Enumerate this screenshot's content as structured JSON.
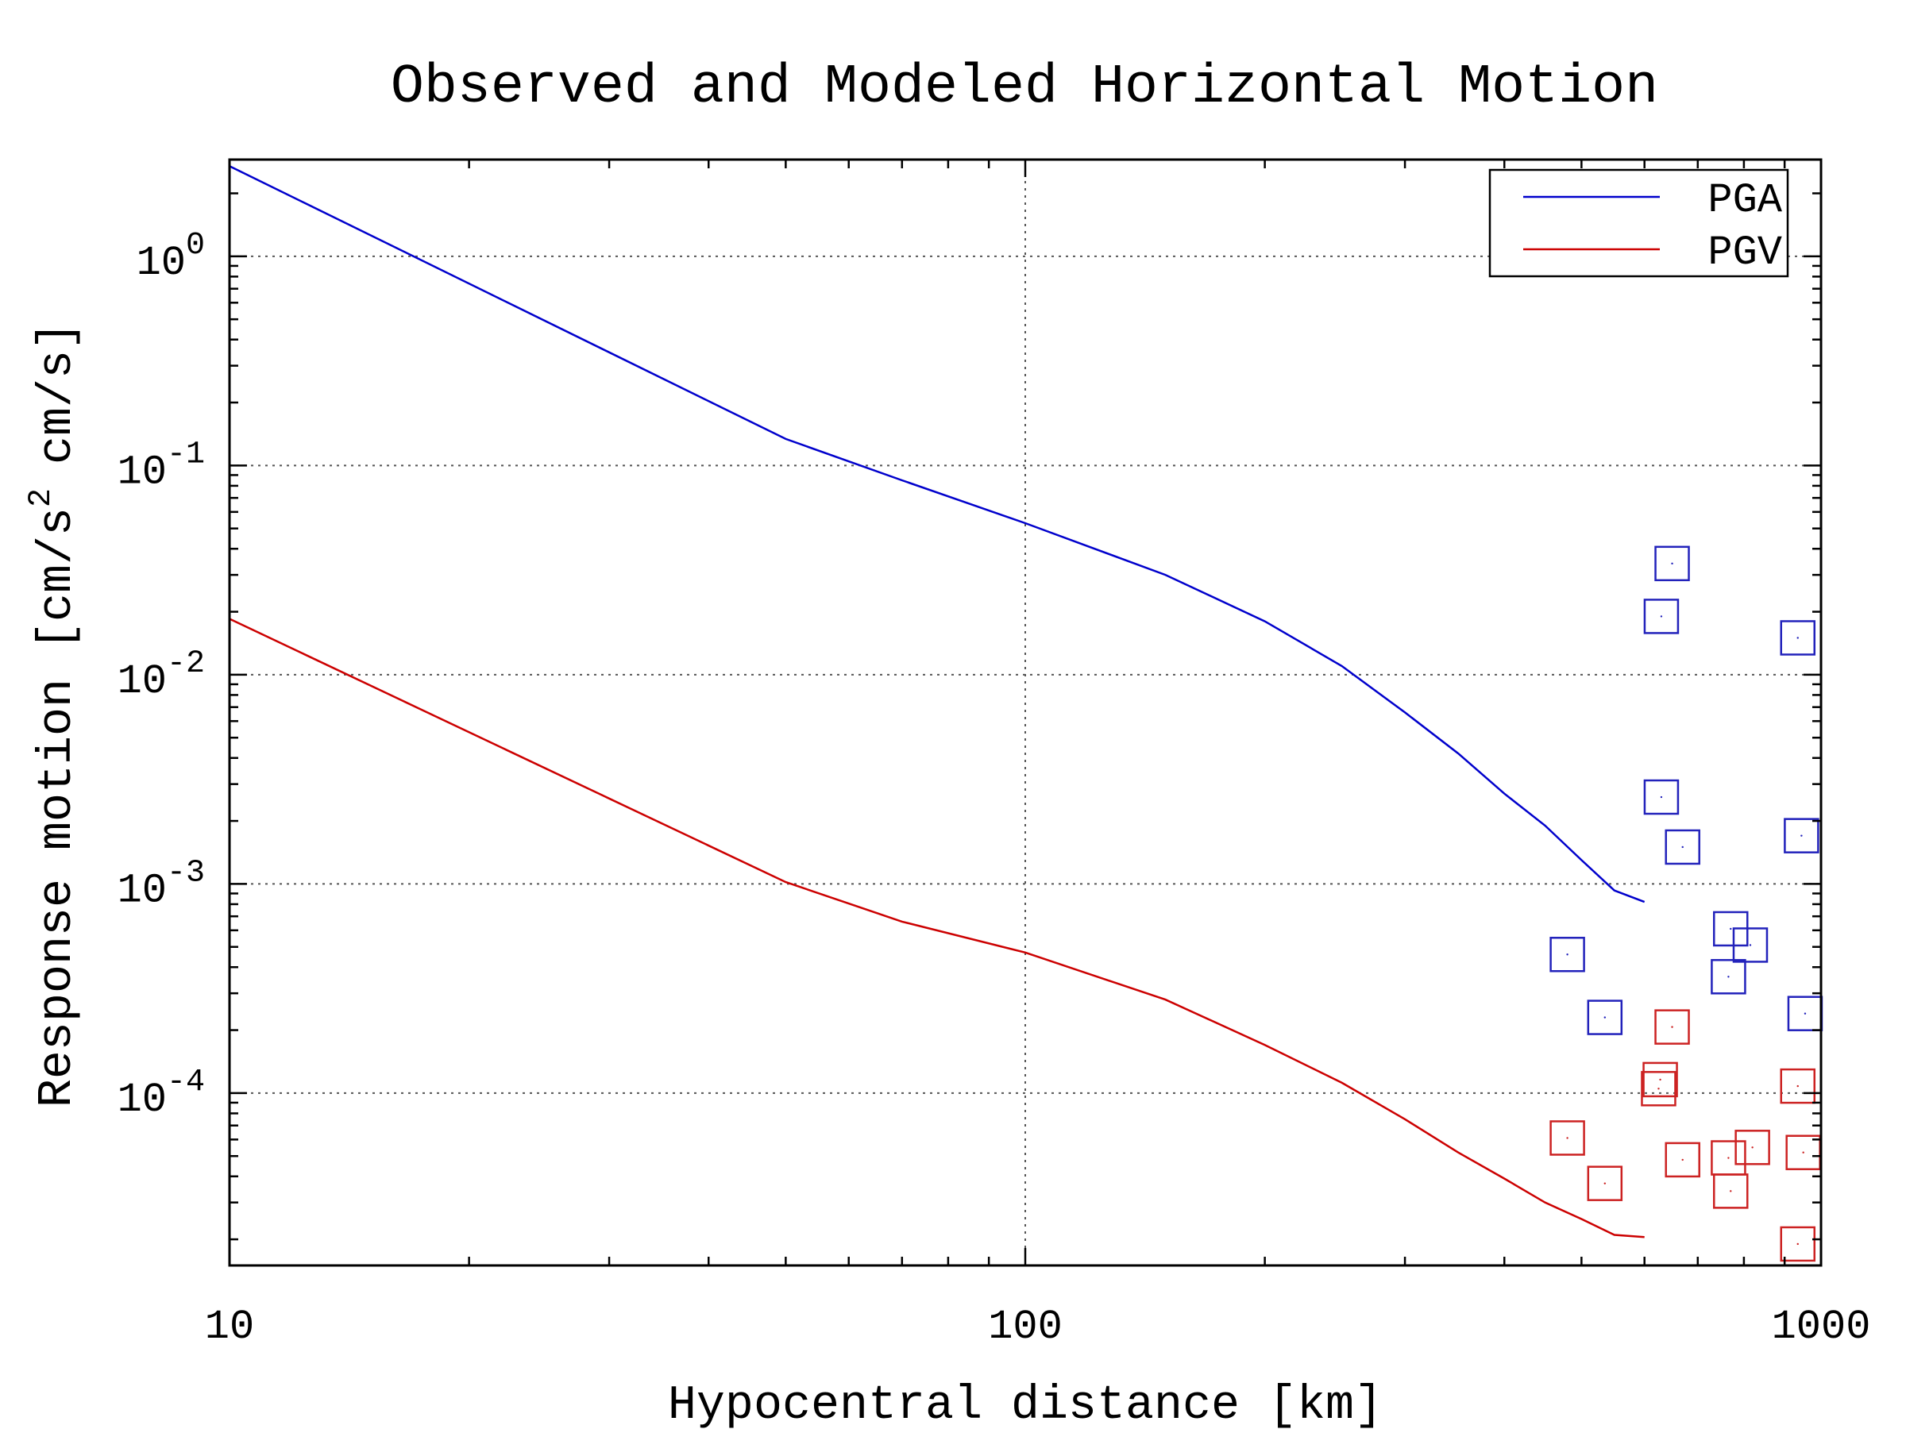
{
  "chart_data": {
    "type": "line",
    "title": "Observed and Modeled Horizontal Motion",
    "xlabel": "Hypocentral distance [km]",
    "ylabel": "Response motion [cm/s",
    "ylabel_sup": "2",
    "ylabel_end": "cm/s]",
    "xscale": "log",
    "yscale": "log",
    "xlim": [
      10,
      1000
    ],
    "ylim": [
      1.5e-05,
      2.9
    ],
    "grid": true,
    "legend_position": "top-right",
    "x_ticks": [
      {
        "value": 10,
        "label": "10"
      },
      {
        "value": 100,
        "label": "100"
      },
      {
        "value": 1000,
        "label": "1000"
      }
    ],
    "y_ticks": [
      {
        "value": 1,
        "exp": "0"
      },
      {
        "value": 0.1,
        "exp": "-1"
      },
      {
        "value": 0.01,
        "exp": "-2"
      },
      {
        "value": 0.001,
        "exp": "-3"
      },
      {
        "value": 0.0001,
        "exp": "-4"
      }
    ],
    "tick_base": "10",
    "series": [
      {
        "name": "PGA",
        "color": "#0000cc",
        "x": [
          10,
          50,
          70,
          100,
          150,
          200,
          250,
          300,
          350,
          400,
          450,
          500,
          550,
          600
        ],
        "y": [
          2.7,
          0.134,
          0.085,
          0.053,
          0.03,
          0.018,
          0.011,
          0.0066,
          0.0042,
          0.0027,
          0.0019,
          0.0013,
          0.00093,
          0.00082
        ]
      },
      {
        "name": "PGV",
        "color": "#cc0000",
        "x": [
          10,
          50,
          70,
          100,
          150,
          200,
          250,
          300,
          350,
          400,
          450,
          500,
          550,
          600
        ],
        "y": [
          0.0185,
          0.00102,
          0.00066,
          0.00047,
          0.00028,
          0.00017,
          0.000112,
          7.5e-05,
          5.2e-05,
          3.9e-05,
          3e-05,
          2.5e-05,
          2.1e-05,
          2.05e-05
        ]
      }
    ],
    "observed": [
      {
        "series": "PGA",
        "color": "#2222bb",
        "points": [
          {
            "x": 480,
            "y": 0.00046
          },
          {
            "x": 535,
            "y": 0.00023
          },
          {
            "x": 630,
            "y": 0.019
          },
          {
            "x": 650,
            "y": 0.034
          },
          {
            "x": 630,
            "y": 0.0026
          },
          {
            "x": 670,
            "y": 0.0015
          },
          {
            "x": 770,
            "y": 0.00061
          },
          {
            "x": 815,
            "y": 0.00051
          },
          {
            "x": 765,
            "y": 0.00036
          },
          {
            "x": 935,
            "y": 0.015
          },
          {
            "x": 945,
            "y": 0.0017
          },
          {
            "x": 955,
            "y": 0.00024
          }
        ]
      },
      {
        "series": "PGV",
        "color": "#cc2222",
        "points": [
          {
            "x": 480,
            "y": 6.1e-05
          },
          {
            "x": 535,
            "y": 3.7e-05
          },
          {
            "x": 628,
            "y": 0.000116
          },
          {
            "x": 625,
            "y": 0.000105
          },
          {
            "x": 650,
            "y": 0.000207
          },
          {
            "x": 670,
            "y": 4.8e-05
          },
          {
            "x": 765,
            "y": 4.9e-05
          },
          {
            "x": 820,
            "y": 5.5e-05
          },
          {
            "x": 770,
            "y": 3.4e-05
          },
          {
            "x": 935,
            "y": 0.000108
          },
          {
            "x": 950,
            "y": 5.2e-05
          },
          {
            "x": 935,
            "y": 1.9e-05
          }
        ]
      }
    ]
  }
}
